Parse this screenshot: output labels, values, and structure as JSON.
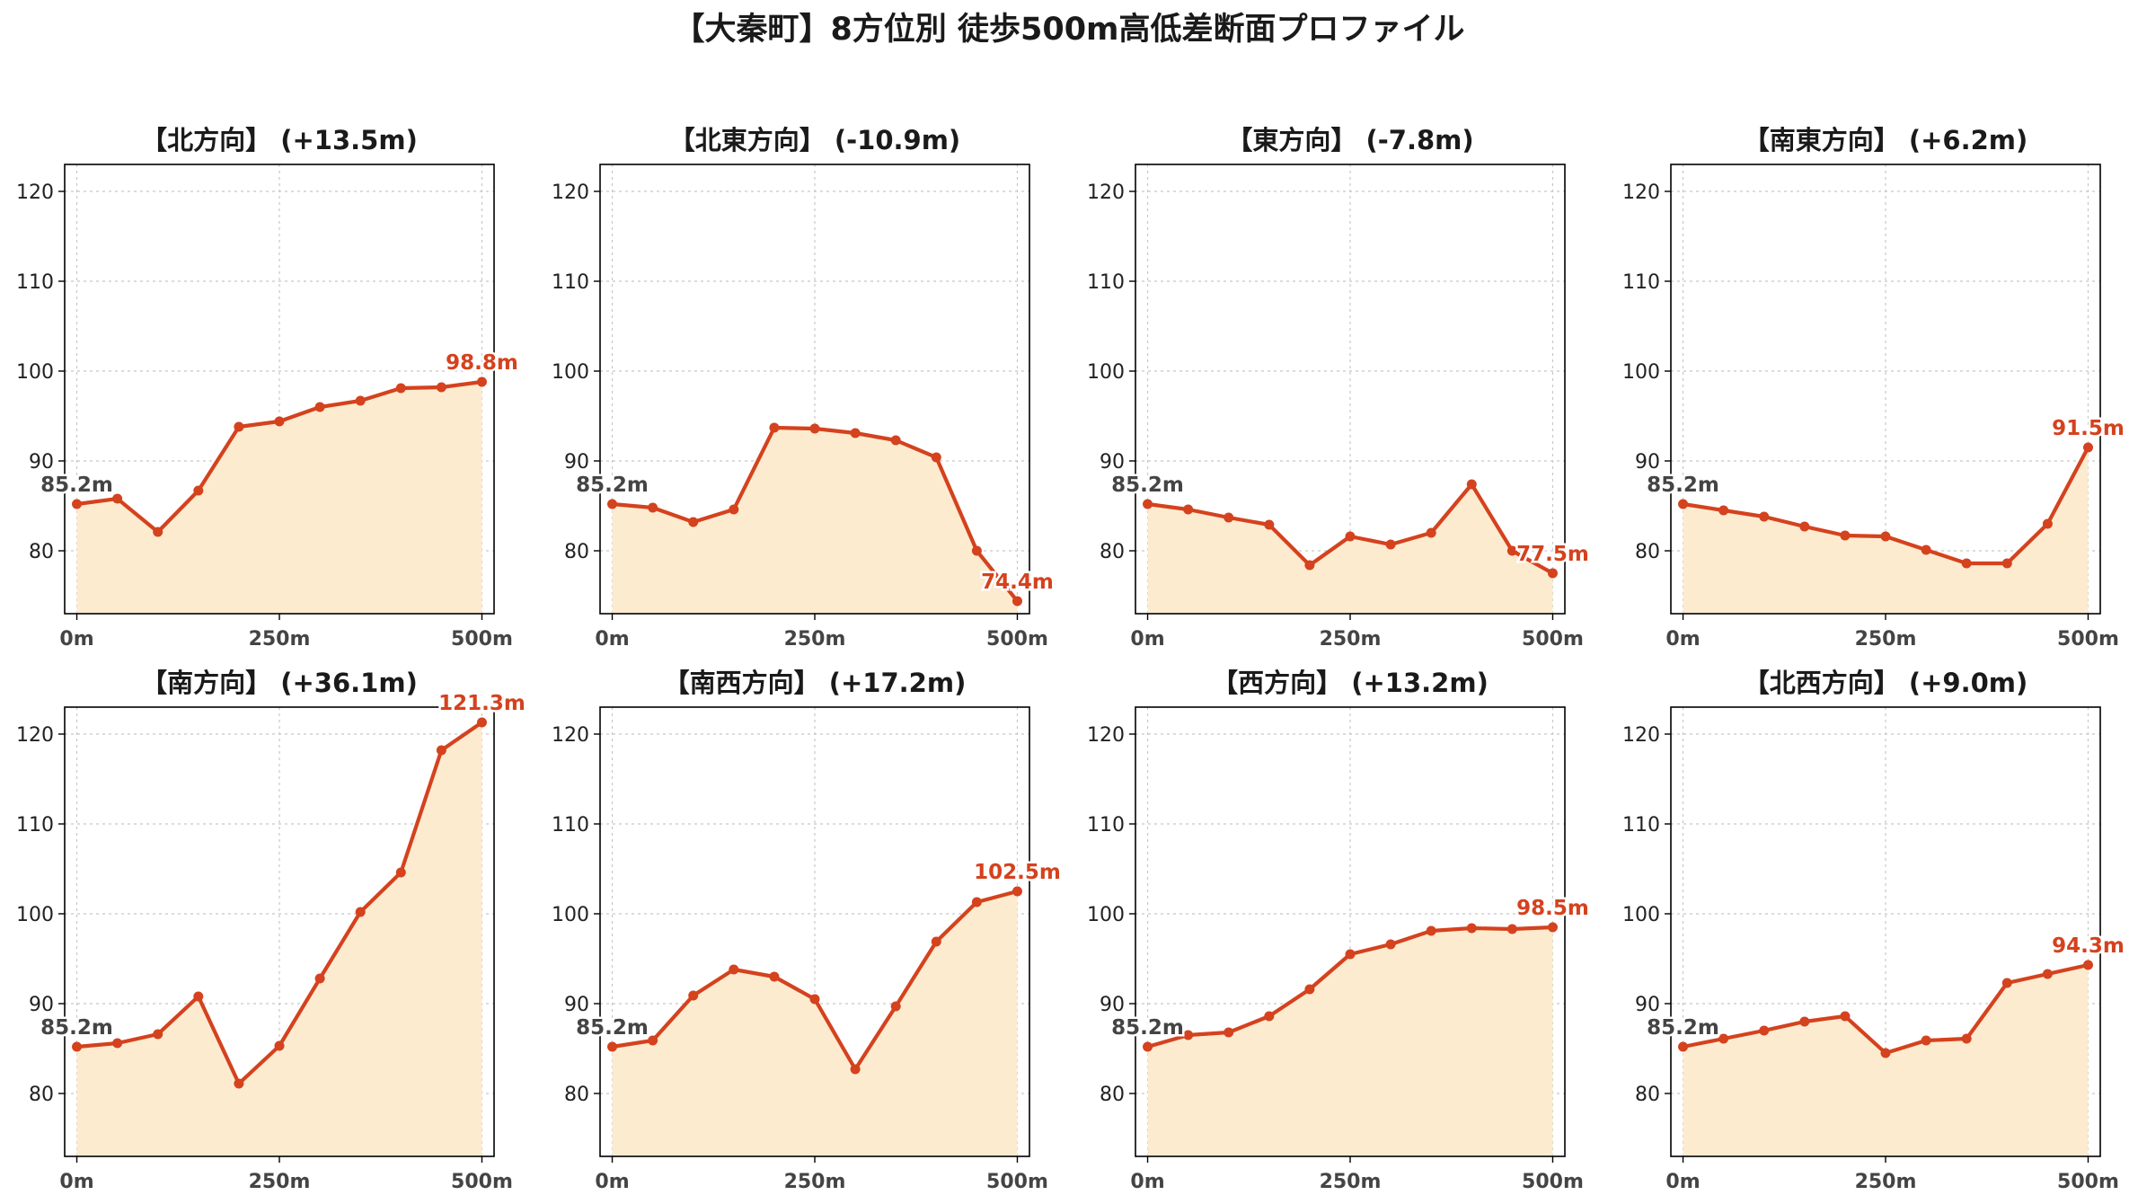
{
  "title": "【大秦町】8方位別 徒歩500m高低差断面プロファイル",
  "colors": {
    "line": "#d4421e",
    "fill": "#fdebd0",
    "start_label": "#444444",
    "end_label": "#d4421e"
  },
  "chart_data": [
    {
      "type": "area",
      "title": "【北方向】 (+13.5m)",
      "x": [
        0,
        50,
        100,
        150,
        200,
        250,
        300,
        350,
        400,
        450,
        500
      ],
      "xticks": [
        "0m",
        "250m",
        "500m"
      ],
      "yticks": [
        "80",
        "90",
        "100",
        "110",
        "120"
      ],
      "ylim": [
        73,
        123
      ],
      "xlim": [
        -15,
        515
      ],
      "grid": true,
      "values": [
        85.2,
        85.8,
        82.1,
        86.7,
        93.8,
        94.4,
        96.0,
        96.7,
        98.1,
        98.2,
        98.8
      ],
      "start_label": "85.2m",
      "end_label": "98.8m"
    },
    {
      "type": "area",
      "title": "【北東方向】 (-10.9m)",
      "x": [
        0,
        50,
        100,
        150,
        200,
        250,
        300,
        350,
        400,
        450,
        500
      ],
      "xticks": [
        "0m",
        "250m",
        "500m"
      ],
      "yticks": [
        "80",
        "90",
        "100",
        "110",
        "120"
      ],
      "ylim": [
        73,
        123
      ],
      "xlim": [
        -15,
        515
      ],
      "grid": true,
      "values": [
        85.2,
        84.8,
        83.2,
        84.6,
        93.7,
        93.6,
        93.1,
        92.3,
        90.4,
        80.0,
        74.4
      ],
      "start_label": "85.2m",
      "end_label": "74.4m"
    },
    {
      "type": "area",
      "title": "【東方向】 (-7.8m)",
      "x": [
        0,
        50,
        100,
        150,
        200,
        250,
        300,
        350,
        400,
        450,
        500
      ],
      "xticks": [
        "0m",
        "250m",
        "500m"
      ],
      "yticks": [
        "80",
        "90",
        "100",
        "110",
        "120"
      ],
      "ylim": [
        73,
        123
      ],
      "xlim": [
        -15,
        515
      ],
      "grid": true,
      "values": [
        85.2,
        84.6,
        83.7,
        82.9,
        78.4,
        81.6,
        80.7,
        82.0,
        87.4,
        80.0,
        77.5
      ],
      "start_label": "85.2m",
      "end_label": "77.5m"
    },
    {
      "type": "area",
      "title": "【南東方向】 (+6.2m)",
      "x": [
        0,
        50,
        100,
        150,
        200,
        250,
        300,
        350,
        400,
        450,
        500
      ],
      "xticks": [
        "0m",
        "250m",
        "500m"
      ],
      "yticks": [
        "80",
        "90",
        "100",
        "110",
        "120"
      ],
      "ylim": [
        73,
        123
      ],
      "xlim": [
        -15,
        515
      ],
      "grid": true,
      "values": [
        85.2,
        84.5,
        83.8,
        82.7,
        81.7,
        81.6,
        80.1,
        78.6,
        78.6,
        83.0,
        91.5
      ],
      "start_label": "85.2m",
      "end_label": "91.5m"
    },
    {
      "type": "area",
      "title": "【南方向】 (+36.1m)",
      "x": [
        0,
        50,
        100,
        150,
        200,
        250,
        300,
        350,
        400,
        450,
        500
      ],
      "xticks": [
        "0m",
        "250m",
        "500m"
      ],
      "yticks": [
        "80",
        "90",
        "100",
        "110",
        "120"
      ],
      "ylim": [
        73,
        123
      ],
      "xlim": [
        -15,
        515
      ],
      "grid": true,
      "values": [
        85.2,
        85.6,
        86.6,
        90.8,
        81.1,
        85.3,
        92.8,
        100.2,
        104.6,
        118.2,
        121.3
      ],
      "start_label": "85.2m",
      "end_label": "121.3m"
    },
    {
      "type": "area",
      "title": "【南西方向】 (+17.2m)",
      "x": [
        0,
        50,
        100,
        150,
        200,
        250,
        300,
        350,
        400,
        450,
        500
      ],
      "xticks": [
        "0m",
        "250m",
        "500m"
      ],
      "yticks": [
        "80",
        "90",
        "100",
        "110",
        "120"
      ],
      "ylim": [
        73,
        123
      ],
      "xlim": [
        -15,
        515
      ],
      "grid": true,
      "values": [
        85.2,
        85.9,
        90.9,
        93.8,
        93.0,
        90.5,
        82.7,
        89.7,
        96.9,
        101.3,
        102.5
      ],
      "start_label": "85.2m",
      "end_label": "102.5m"
    },
    {
      "type": "area",
      "title": "【西方向】 (+13.2m)",
      "x": [
        0,
        50,
        100,
        150,
        200,
        250,
        300,
        350,
        400,
        450,
        500
      ],
      "xticks": [
        "0m",
        "250m",
        "500m"
      ],
      "yticks": [
        "80",
        "90",
        "100",
        "110",
        "120"
      ],
      "ylim": [
        73,
        123
      ],
      "xlim": [
        -15,
        515
      ],
      "grid": true,
      "values": [
        85.2,
        86.5,
        86.8,
        88.6,
        91.6,
        95.5,
        96.6,
        98.1,
        98.4,
        98.3,
        98.5
      ],
      "start_label": "85.2m",
      "end_label": "98.5m"
    },
    {
      "type": "area",
      "title": "【北西方向】 (+9.0m)",
      "x": [
        0,
        50,
        100,
        150,
        200,
        250,
        300,
        350,
        400,
        450,
        500
      ],
      "xticks": [
        "0m",
        "250m",
        "500m"
      ],
      "yticks": [
        "80",
        "90",
        "100",
        "110",
        "120"
      ],
      "ylim": [
        73,
        123
      ],
      "xlim": [
        -15,
        515
      ],
      "grid": true,
      "values": [
        85.2,
        86.1,
        87.0,
        88.0,
        88.6,
        84.5,
        85.9,
        86.1,
        92.3,
        93.3,
        94.3
      ],
      "start_label": "85.2m",
      "end_label": "94.3m"
    }
  ]
}
